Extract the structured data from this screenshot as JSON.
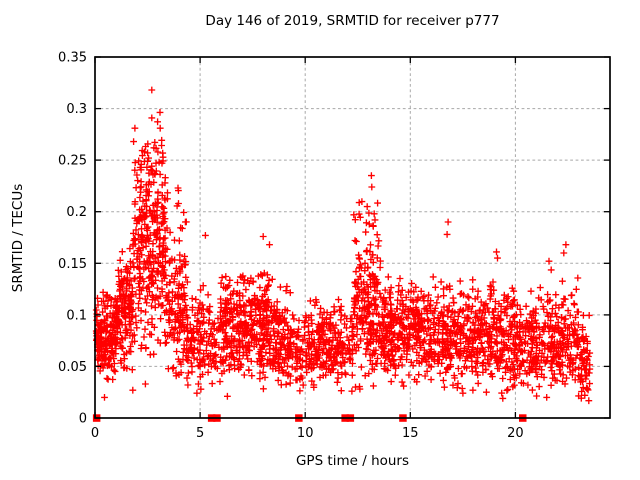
{
  "title": "Day 146 of 2019, SRMTID for receiver p777",
  "chart_data": {
    "type": "scatter",
    "title": "Day 146 of 2019, SRMTID for receiver p777",
    "xlabel": "GPS time / hours",
    "ylabel": "SRMTID / TECUs",
    "xlim": [
      0,
      24.5
    ],
    "ylim": [
      0,
      0.35
    ],
    "xticks": {
      "values": [
        0,
        5,
        10,
        15,
        20
      ],
      "labels": [
        "0",
        "5",
        "10",
        "15",
        "20"
      ]
    },
    "yticks": {
      "values": [
        0,
        0.05,
        0.1,
        0.15,
        0.2,
        0.25,
        0.3,
        0.35
      ],
      "labels": [
        "0",
        "0.05",
        "0.1",
        "0.15",
        "0.2",
        "0.25",
        "0.3",
        "0.35"
      ]
    },
    "grid": true,
    "grid_color": "#a8a8a8",
    "marker": "plus",
    "marker_color": "#ff0000",
    "series": [
      {
        "name": "srmtid",
        "marker": "plus",
        "color": "#ff0000",
        "clusters": [
          {
            "x_from": 0.05,
            "x_to": 1.0,
            "count": 170,
            "y_mean": 0.078,
            "y_sd": 0.024,
            "y_min": 0.018,
            "y_max": 0.158
          },
          {
            "x_from": 1.0,
            "x_to": 1.8,
            "count": 150,
            "y_mean": 0.105,
            "y_sd": 0.032,
            "y_min": 0.03,
            "y_max": 0.19
          },
          {
            "x_from": 1.8,
            "x_to": 2.6,
            "count": 150,
            "y_mean": 0.155,
            "y_sd": 0.048,
            "y_min": 0.04,
            "y_max": 0.282,
            "tail": true
          },
          {
            "x_from": 2.6,
            "x_to": 3.35,
            "count": 160,
            "y_mean": 0.163,
            "y_sd": 0.05,
            "y_min": 0.05,
            "y_max": 0.3,
            "tail": true
          },
          {
            "x_from": 3.35,
            "x_to": 4.4,
            "count": 150,
            "y_mean": 0.105,
            "y_sd": 0.036,
            "y_min": 0.03,
            "y_max": 0.225,
            "tail": true
          },
          {
            "x_from": 4.4,
            "x_to": 5.5,
            "count": 110,
            "y_mean": 0.075,
            "y_sd": 0.026,
            "y_min": 0.022,
            "y_max": 0.152
          },
          {
            "x_from": 5.5,
            "x_to": 5.95,
            "count": 28,
            "y_mean": 0.07,
            "y_sd": 0.02,
            "y_min": 0.03,
            "y_max": 0.12
          },
          {
            "x_from": 5.95,
            "x_to": 7.25,
            "count": 200,
            "y_mean": 0.09,
            "y_sd": 0.028,
            "y_min": 0.03,
            "y_max": 0.158
          },
          {
            "x_from": 7.25,
            "x_to": 8.45,
            "count": 170,
            "y_mean": 0.088,
            "y_sd": 0.03,
            "y_min": 0.028,
            "y_max": 0.178
          },
          {
            "x_from": 8.45,
            "x_to": 9.35,
            "count": 130,
            "y_mean": 0.077,
            "y_sd": 0.025,
            "y_min": 0.025,
            "y_max": 0.145
          },
          {
            "x_from": 9.35,
            "x_to": 10.1,
            "count": 55,
            "y_mean": 0.065,
            "y_sd": 0.02,
            "y_min": 0.02,
            "y_max": 0.12
          },
          {
            "x_from": 10.1,
            "x_to": 11.85,
            "count": 200,
            "y_mean": 0.072,
            "y_sd": 0.022,
            "y_min": 0.022,
            "y_max": 0.138
          },
          {
            "x_from": 11.85,
            "x_to": 12.3,
            "count": 35,
            "y_mean": 0.07,
            "y_sd": 0.022,
            "y_min": 0.025,
            "y_max": 0.125
          },
          {
            "x_from": 12.3,
            "x_to": 13.6,
            "count": 210,
            "y_mean": 0.1,
            "y_sd": 0.038,
            "y_min": 0.03,
            "y_max": 0.21,
            "tail": true
          },
          {
            "x_from": 13.6,
            "x_to": 14.6,
            "count": 150,
            "y_mean": 0.082,
            "y_sd": 0.027,
            "y_min": 0.025,
            "y_max": 0.16
          },
          {
            "x_from": 14.6,
            "x_to": 16.3,
            "count": 200,
            "y_mean": 0.086,
            "y_sd": 0.028,
            "y_min": 0.028,
            "y_max": 0.175
          },
          {
            "x_from": 16.3,
            "x_to": 18.2,
            "count": 230,
            "y_mean": 0.082,
            "y_sd": 0.027,
            "y_min": 0.025,
            "y_max": 0.19
          },
          {
            "x_from": 18.2,
            "x_to": 20.1,
            "count": 240,
            "y_mean": 0.08,
            "y_sd": 0.028,
            "y_min": 0.022,
            "y_max": 0.165
          },
          {
            "x_from": 20.1,
            "x_to": 20.7,
            "count": 50,
            "y_mean": 0.07,
            "y_sd": 0.022,
            "y_min": 0.03,
            "y_max": 0.125
          },
          {
            "x_from": 20.7,
            "x_to": 23.0,
            "count": 270,
            "y_mean": 0.078,
            "y_sd": 0.028,
            "y_min": 0.02,
            "y_max": 0.175
          },
          {
            "x_from": 23.0,
            "x_to": 23.55,
            "count": 60,
            "y_mean": 0.06,
            "y_sd": 0.024,
            "y_min": 0.015,
            "y_max": 0.112
          }
        ],
        "highlight_points": [
          [
            2.7,
            0.318
          ],
          [
            2.7,
            0.291
          ],
          [
            1.9,
            0.281
          ],
          [
            3.1,
            0.281
          ],
          [
            2.8,
            0.262
          ],
          [
            2.35,
            0.258
          ],
          [
            2.55,
            0.252
          ],
          [
            3.05,
            0.248
          ],
          [
            2.9,
            0.247
          ],
          [
            2.15,
            0.243
          ],
          [
            3.95,
            0.223
          ],
          [
            3.97,
            0.208
          ],
          [
            4.3,
            0.19
          ],
          [
            13.15,
            0.235
          ],
          [
            13.17,
            0.224
          ],
          [
            12.95,
            0.205
          ],
          [
            13.28,
            0.198
          ],
          [
            13.05,
            0.188
          ],
          [
            8.0,
            0.176
          ],
          [
            5.25,
            0.177
          ],
          [
            8.3,
            0.168
          ],
          [
            16.8,
            0.19
          ],
          [
            16.75,
            0.178
          ],
          [
            19.1,
            0.161
          ],
          [
            19.15,
            0.155
          ],
          [
            22.4,
            0.168
          ],
          [
            22.3,
            0.16
          ],
          [
            21.6,
            0.152
          ]
        ],
        "low_outliers": [
          [
            0.45,
            0.02
          ],
          [
            1.8,
            0.027
          ],
          [
            2.4,
            0.033
          ],
          [
            4.85,
            0.024
          ],
          [
            6.3,
            0.021
          ],
          [
            12.6,
            0.028
          ],
          [
            17.5,
            0.024
          ],
          [
            19.4,
            0.019
          ],
          [
            23.1,
            0.035
          ],
          [
            23.3,
            0.022
          ]
        ]
      },
      {
        "name": "baseline-markers",
        "marker": "filled-square",
        "color": "#ff0000",
        "y": 0,
        "x": [
          0.08,
          5.55,
          5.8,
          9.7,
          11.9,
          12.15,
          14.65,
          20.35
        ]
      }
    ]
  },
  "colors": {
    "marker": "#ff0000",
    "grid": "#a8a8a8",
    "axis": "#000000",
    "background": "#ffffff"
  }
}
